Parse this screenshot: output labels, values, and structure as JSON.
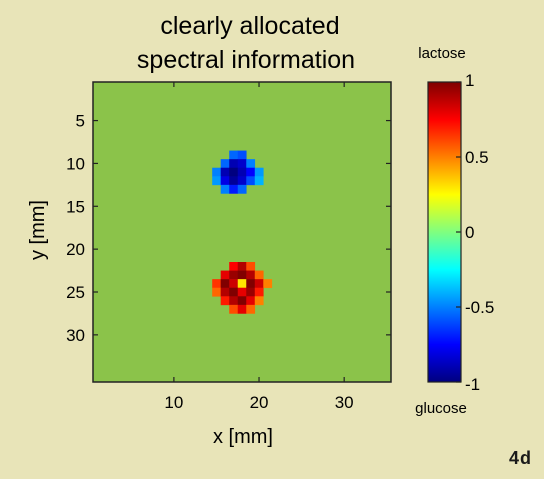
{
  "chart_data": {
    "type": "heatmap",
    "title_lines": [
      "clearly allocated",
      "spectral information"
    ],
    "xlabel": "x [mm]",
    "ylabel": "y [mm]",
    "x_ticks": [
      10,
      20,
      30
    ],
    "y_ticks": [
      5,
      10,
      15,
      20,
      25,
      30
    ],
    "xlim": [
      0.5,
      35.5
    ],
    "ylim": [
      0.5,
      35.5
    ],
    "y_axis_reversed": true,
    "background_value": 0,
    "blobs": [
      {
        "x_range": [
          15,
          20
        ],
        "y_range": [
          9,
          13
        ],
        "cells": [
          {
            "x": 17,
            "y": 9,
            "v": -0.55
          },
          {
            "x": 18,
            "y": 9,
            "v": -0.6
          },
          {
            "x": 16,
            "y": 10,
            "v": -0.55
          },
          {
            "x": 17,
            "y": 10,
            "v": -0.9
          },
          {
            "x": 18,
            "y": 10,
            "v": -0.85
          },
          {
            "x": 19,
            "y": 10,
            "v": -0.5
          },
          {
            "x": 15,
            "y": 11,
            "v": -0.5
          },
          {
            "x": 16,
            "y": 11,
            "v": -0.9
          },
          {
            "x": 17,
            "y": 11,
            "v": -1.0
          },
          {
            "x": 18,
            "y": 11,
            "v": -0.9
          },
          {
            "x": 19,
            "y": 11,
            "v": -0.75
          },
          {
            "x": 20,
            "y": 11,
            "v": -0.45
          },
          {
            "x": 15,
            "y": 12,
            "v": -0.45
          },
          {
            "x": 16,
            "y": 12,
            "v": -0.8
          },
          {
            "x": 17,
            "y": 12,
            "v": -0.95
          },
          {
            "x": 18,
            "y": 12,
            "v": -0.85
          },
          {
            "x": 19,
            "y": 12,
            "v": -0.6
          },
          {
            "x": 20,
            "y": 12,
            "v": -0.4
          },
          {
            "x": 16,
            "y": 13,
            "v": -0.5
          },
          {
            "x": 17,
            "y": 13,
            "v": -0.7
          },
          {
            "x": 18,
            "y": 13,
            "v": -0.55
          }
        ]
      },
      {
        "x_range": [
          15,
          21
        ],
        "y_range": [
          22,
          27
        ],
        "cells": [
          {
            "x": 17,
            "y": 22,
            "v": 0.75
          },
          {
            "x": 18,
            "y": 22,
            "v": 0.9
          },
          {
            "x": 19,
            "y": 22,
            "v": 0.6
          },
          {
            "x": 16,
            "y": 23,
            "v": 0.8
          },
          {
            "x": 17,
            "y": 23,
            "v": 0.95
          },
          {
            "x": 18,
            "y": 23,
            "v": 1.0
          },
          {
            "x": 19,
            "y": 23,
            "v": 0.9
          },
          {
            "x": 20,
            "y": 23,
            "v": 0.55
          },
          {
            "x": 15,
            "y": 24,
            "v": 0.65
          },
          {
            "x": 16,
            "y": 24,
            "v": 1.0
          },
          {
            "x": 17,
            "y": 24,
            "v": 0.85
          },
          {
            "x": 18,
            "y": 24,
            "v": 0.3
          },
          {
            "x": 19,
            "y": 24,
            "v": 1.0
          },
          {
            "x": 20,
            "y": 24,
            "v": 0.85
          },
          {
            "x": 21,
            "y": 24,
            "v": 0.5
          },
          {
            "x": 15,
            "y": 25,
            "v": 0.55
          },
          {
            "x": 16,
            "y": 25,
            "v": 0.9
          },
          {
            "x": 17,
            "y": 25,
            "v": 1.0
          },
          {
            "x": 18,
            "y": 25,
            "v": 0.8
          },
          {
            "x": 19,
            "y": 25,
            "v": 0.95
          },
          {
            "x": 20,
            "y": 25,
            "v": 0.7
          },
          {
            "x": 16,
            "y": 26,
            "v": 0.7
          },
          {
            "x": 17,
            "y": 26,
            "v": 0.9
          },
          {
            "x": 18,
            "y": 26,
            "v": 1.0
          },
          {
            "x": 19,
            "y": 26,
            "v": 0.8
          },
          {
            "x": 20,
            "y": 26,
            "v": 0.5
          },
          {
            "x": 17,
            "y": 27,
            "v": 0.6
          },
          {
            "x": 18,
            "y": 27,
            "v": 0.8
          },
          {
            "x": 19,
            "y": 27,
            "v": 0.55
          }
        ]
      }
    ],
    "colorbar": {
      "top_label": "lactose",
      "bottom_label": "glucose",
      "range": [
        -1,
        1
      ],
      "ticks": [
        1,
        0.5,
        0,
        -0.5,
        -1
      ],
      "tick_labels": [
        "1",
        "0.5",
        "0",
        "-0.5",
        "-1"
      ],
      "colormap": "jet"
    },
    "grid": false,
    "colors": {
      "background": "#e8e4b8",
      "zero_value_fill": "#8bc34a"
    }
  },
  "figure_id": "4d"
}
